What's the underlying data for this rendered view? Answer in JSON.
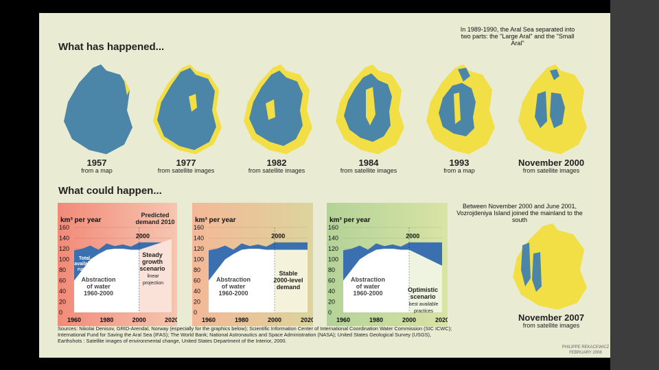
{
  "headings": {
    "happened": "What has happened...",
    "could": "What could happen..."
  },
  "maps": [
    {
      "year": "1957",
      "source": "from a map"
    },
    {
      "year": "1977",
      "source": "from satellite images"
    },
    {
      "year": "1982",
      "source": "from satellite images"
    },
    {
      "year": "1984",
      "source": "from satellite images"
    },
    {
      "year": "1993",
      "source": "from a map"
    },
    {
      "year": "November 2000",
      "source": "from satellite images"
    }
  ],
  "map2007": {
    "year": "November 2007",
    "source": "from satellite images"
  },
  "notes": {
    "split": "In 1989-1990, the Aral Sea separated into two parts: the \"Large Aral\" and the \"Small Aral\"",
    "island": "Between November 2000 and June 2001, Vozrojdeniya Island joined the mainland to the south"
  },
  "colors": {
    "water": "#4b86a8",
    "dry": "#f2df45",
    "background": "#e9ebd3",
    "line": "#3a70b0"
  },
  "chart_common": {
    "unit": "km³ per year",
    "y_ticks": [
      "160",
      "140",
      "120",
      "100",
      "80",
      "60",
      "40",
      "20",
      "0"
    ],
    "x_ticks": [
      "1960",
      "1980",
      "2000",
      "2020"
    ],
    "label_2000": "2000",
    "abstraction": "Abstraction of water 1960-2000"
  },
  "panels": [
    {
      "predicted": "Predicted demand 2010",
      "runoff": "Total available runoff",
      "scenario": "Steady growth scenario",
      "projection": "linear projection"
    },
    {
      "scenario": "Stable 2000-level demand"
    },
    {
      "scenario": "Optimistic scenario",
      "practices": "best available practices"
    }
  ],
  "chart_data": {
    "type": "area",
    "ylabel": "km³ per year",
    "ylim": [
      0,
      160
    ],
    "xlim": [
      1960,
      2020
    ],
    "x": [
      1960,
      1965,
      1970,
      1975,
      1980,
      1985,
      1990,
      1995,
      2000
    ],
    "series": [
      {
        "name": "Total available runoff",
        "values": [
          117,
          120,
          126,
          118,
          130,
          125,
          128,
          124,
          132
        ]
      },
      {
        "name": "Abstraction of water 1960-2000",
        "values": [
          60,
          80,
          100,
          110,
          118,
          120,
          120,
          118,
          118
        ]
      }
    ],
    "scenarios": [
      {
        "name": "Steady growth scenario",
        "x": [
          2000,
          2020
        ],
        "values": [
          118,
          138
        ]
      },
      {
        "name": "Stable 2000-level demand",
        "x": [
          2000,
          2020
        ],
        "values": [
          118,
          118
        ]
      },
      {
        "name": "Optimistic scenario",
        "x": [
          2000,
          2020
        ],
        "values": [
          118,
          88
        ]
      }
    ]
  },
  "sources": "Sources: Nikolai Denisov, GRID-Arendal, Norway (especially for the graphics below); Scientific Information Center of International Coordination Water Commission (SIC ICWC); International Fund for Saving the Aral Sea (IFAS); The World Bank; National Astronautics and Space Administration (NASA); United States Geological Survey (USGS), Earthshots : Satellite images of environmental change, United States Department of the Interior, 2000.",
  "credit": "PHILIPPE REKACEWICZ FEBRUARY 2008"
}
